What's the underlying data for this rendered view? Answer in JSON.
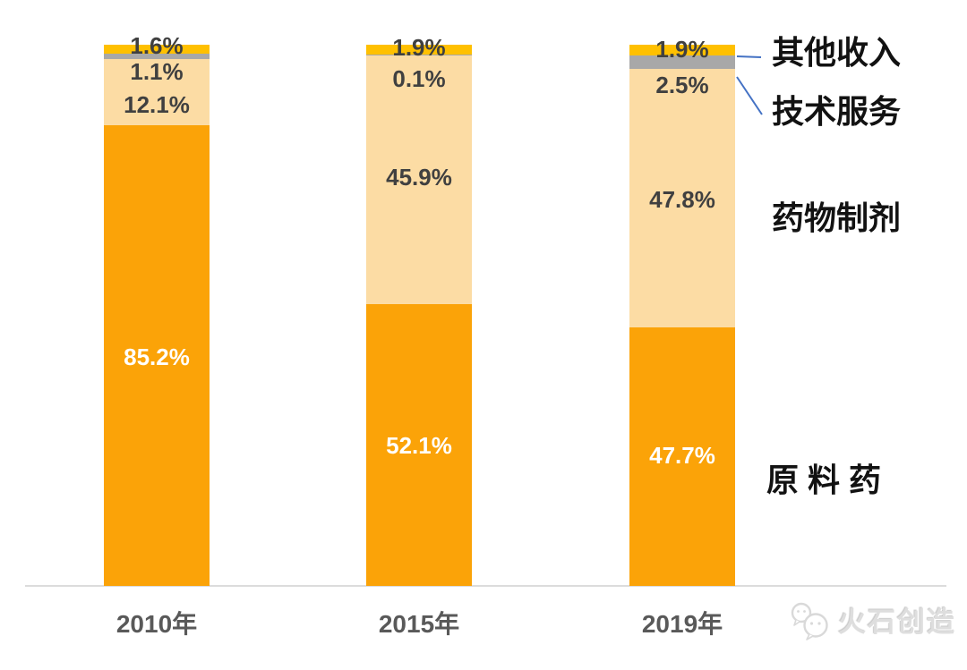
{
  "chart_data": {
    "type": "bar",
    "stacked": true,
    "percent_stacked": true,
    "grid": false,
    "legend_position": "right",
    "ylim": [
      0,
      100
    ],
    "categories": [
      "2010年",
      "2015年",
      "2019年"
    ],
    "series": [
      {
        "key": "api",
        "name": "原料药",
        "color": "#FBA308",
        "values": [
          85.2,
          52.1,
          47.7
        ],
        "labels": [
          "85.2%",
          "52.1%",
          "47.7%"
        ]
      },
      {
        "key": "formulation",
        "name": "药物制剂",
        "color": "#FCDCA4",
        "values": [
          12.1,
          45.9,
          47.8
        ],
        "labels": [
          "12.1%",
          "45.9%",
          "47.8%"
        ]
      },
      {
        "key": "tech-service",
        "name": "技术服务",
        "color": "#A8A8A8",
        "values": [
          1.1,
          0.1,
          2.5
        ],
        "labels": [
          "1.1%",
          "0.1%",
          "2.5%"
        ]
      },
      {
        "key": "other-income",
        "name": "其他收入",
        "color": "#FFC000",
        "values": [
          1.6,
          1.9,
          1.9
        ],
        "labels": [
          "1.6%",
          "1.9%",
          "1.9%"
        ]
      }
    ]
  },
  "legend": {
    "other_income": "其他收入",
    "tech_service": "技术服务",
    "formulation": "药物制剂",
    "api": "原 料 药"
  },
  "x_axis": {
    "labels": [
      "2010年",
      "2015年",
      "2019年"
    ]
  },
  "watermark": {
    "text": "火石创造"
  },
  "colors": {
    "orange": "#FBA308",
    "light_orange": "#FCDCA4",
    "gray": "#A8A8A8",
    "yellow": "#FFC000",
    "callout_blue": "#4472C4",
    "axis_line": "#DCDCDC",
    "value_label_dark": "#404040",
    "value_label_white": "#FFFFFF",
    "axis_text": "#595959",
    "legend_text": "#121212"
  }
}
